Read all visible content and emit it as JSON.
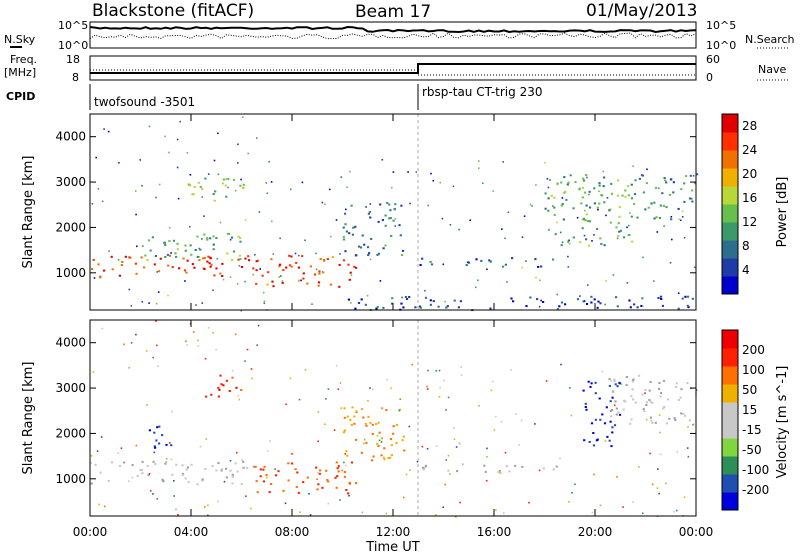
{
  "header": {
    "station": "Blackstone (fitACF)",
    "beam": "Beam 17",
    "date": "01/May/2013"
  },
  "panel_labels": {
    "nsky": "N.Sky",
    "nsearch": "N.Search",
    "freq_line1": "Freq.",
    "freq_line2": "[MHz]",
    "nave": "Nave",
    "cpid": "CPID",
    "nsky_top": "10^5",
    "nsky_bottom": "10^0",
    "nsearch_top": "10^5",
    "nsearch_bottom": "10^0",
    "freq_top": "18",
    "freq_bottom": "8",
    "nave_top": "60",
    "nave_bottom": "0",
    "cpid_1": "twofsound -3501",
    "cpid_2": "rbsp-tau CT-trig 230"
  },
  "colors": {
    "scale": [
      "#0000cc",
      "#1e3ca8",
      "#2d6e8c",
      "#3b9a68",
      "#68c04c",
      "#b8d838",
      "#f0b000",
      "#f07000",
      "#ff3000",
      "#e00000"
    ],
    "velocity_scale": [
      "#0000dd",
      "#1f4fb0",
      "#2e8e5a",
      "#7fd640",
      "#c8c8c8",
      "#c8c8c8",
      "#f0b000",
      "#ff7000",
      "#ff2000",
      "#ee0000"
    ],
    "ground_scatter": "#a0a0a0"
  },
  "chart_data": [
    {
      "type": "heatmap",
      "title": "Power",
      "xlabel": "Time UT",
      "ylabel": "Slant Range [km]",
      "x_ticks": [
        "00:00",
        "04:00",
        "08:00",
        "12:00",
        "16:00",
        "20:00",
        "00:00"
      ],
      "xlim_hours": [
        0,
        24
      ],
      "y_ticks": [
        "1000",
        "2000",
        "3000",
        "4000"
      ],
      "ylim": [
        180,
        4500
      ],
      "colorbar": {
        "label": "Power [dB]",
        "ticks": [
          "4",
          "8",
          "12",
          "16",
          "20",
          "24",
          "28"
        ],
        "range": [
          0,
          30
        ]
      },
      "regions": [
        {
          "t0": 0.0,
          "t1": 6.5,
          "r0": 900,
          "r1": 1400,
          "value": 26
        },
        {
          "t0": 2.0,
          "t1": 6.5,
          "r0": 1300,
          "r1": 1900,
          "value": 12
        },
        {
          "t0": 3.8,
          "t1": 6.3,
          "r0": 2600,
          "r1": 3100,
          "value": 14
        },
        {
          "t0": 6.5,
          "t1": 10.5,
          "r0": 700,
          "r1": 1400,
          "value": 25
        },
        {
          "t0": 10.0,
          "t1": 12.5,
          "r0": 1400,
          "r1": 2600,
          "value": 8
        },
        {
          "t0": 13.0,
          "t1": 18.5,
          "r0": 1150,
          "r1": 1350,
          "value": 6
        },
        {
          "t0": 18.0,
          "t1": 21.5,
          "r0": 1600,
          "r1": 3200,
          "value": 12
        },
        {
          "t0": 21.5,
          "t1": 24.0,
          "r0": 2200,
          "r1": 3200,
          "value": 10
        },
        {
          "t0": 10.0,
          "t1": 24.0,
          "r0": 200,
          "r1": 500,
          "value": 5
        }
      ]
    },
    {
      "type": "heatmap",
      "title": "Velocity",
      "xlabel": "Time UT",
      "ylabel": "Slant Range [km]",
      "x_ticks": [
        "00:00",
        "04:00",
        "08:00",
        "12:00",
        "16:00",
        "20:00",
        "00:00"
      ],
      "xlim_hours": [
        0,
        24
      ],
      "y_ticks": [
        "1000",
        "2000",
        "3000",
        "4000"
      ],
      "ylim": [
        180,
        4500
      ],
      "colorbar": {
        "label": "Velocity [m s^-1]",
        "ticks": [
          "200",
          "100",
          "50",
          "15",
          "-15",
          "-50",
          "-100",
          "-200"
        ],
        "range": [
          -250,
          250
        ]
      },
      "regions": [
        {
          "t0": 0.0,
          "t1": 6.5,
          "r0": 900,
          "r1": 1400,
          "value": 0
        },
        {
          "t0": 2.0,
          "t1": 3.3,
          "r0": 1700,
          "r1": 2200,
          "value": -200
        },
        {
          "t0": 4.5,
          "t1": 6.0,
          "r0": 2800,
          "r1": 3300,
          "value": 180
        },
        {
          "t0": 6.5,
          "t1": 10.5,
          "r0": 700,
          "r1": 1400,
          "value": 150
        },
        {
          "t0": 10.0,
          "t1": 12.5,
          "r0": 1400,
          "r1": 2600,
          "value": 100
        },
        {
          "t0": 13.0,
          "t1": 18.5,
          "r0": 1150,
          "r1": 1350,
          "value": 0
        },
        {
          "t0": 19.5,
          "t1": 21.0,
          "r0": 1700,
          "r1": 3200,
          "value": -200
        },
        {
          "t0": 20.5,
          "t1": 24.0,
          "r0": 2200,
          "r1": 3300,
          "value": 0
        }
      ]
    }
  ]
}
